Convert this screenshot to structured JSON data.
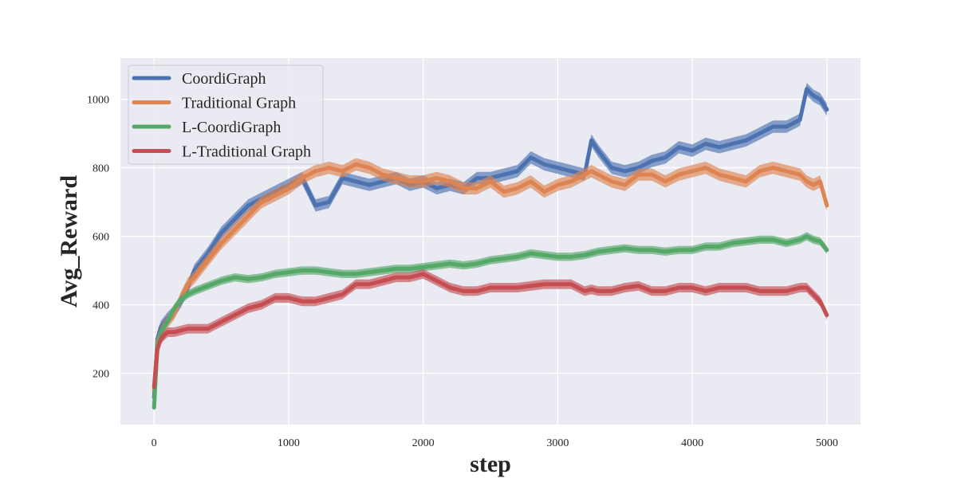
{
  "chart_data": {
    "type": "line",
    "title": "",
    "xlabel": "step",
    "ylabel": "Avg_Reward",
    "xlim": [
      -250,
      5250
    ],
    "ylim": [
      50,
      1120
    ],
    "xticks": [
      0,
      1000,
      2000,
      3000,
      4000,
      5000
    ],
    "yticks": [
      200,
      400,
      600,
      800,
      1000
    ],
    "grid": true,
    "legend_position": "top-left",
    "x": [
      0,
      25,
      50,
      100,
      150,
      200,
      250,
      300,
      400,
      500,
      600,
      700,
      800,
      900,
      1000,
      1100,
      1200,
      1300,
      1400,
      1500,
      1600,
      1700,
      1800,
      1900,
      2000,
      2100,
      2200,
      2300,
      2400,
      2500,
      2600,
      2700,
      2800,
      2900,
      3000,
      3100,
      3200,
      3250,
      3300,
      3400,
      3500,
      3600,
      3700,
      3800,
      3900,
      4000,
      4100,
      4200,
      4300,
      4400,
      4500,
      4600,
      4700,
      4800,
      4850,
      4900,
      4950,
      5000
    ],
    "series": [
      {
        "name": "CoordiGraph",
        "color": "#4c72b0",
        "band": 18,
        "values": [
          130,
          300,
          335,
          360,
          380,
          410,
          450,
          500,
          550,
          610,
          650,
          690,
          710,
          730,
          750,
          770,
          690,
          700,
          770,
          760,
          750,
          760,
          770,
          750,
          760,
          740,
          750,
          740,
          770,
          770,
          780,
          790,
          830,
          810,
          800,
          790,
          780,
          880,
          850,
          800,
          790,
          800,
          820,
          830,
          860,
          850,
          870,
          860,
          870,
          880,
          900,
          920,
          920,
          940,
          1030,
          1010,
          1000,
          970
        ]
      },
      {
        "name": "Traditional Graph",
        "color": "#dd8452",
        "band": 18,
        "values": [
          150,
          290,
          320,
          350,
          375,
          420,
          460,
          480,
          530,
          580,
          620,
          660,
          700,
          720,
          740,
          770,
          790,
          800,
          790,
          810,
          800,
          780,
          770,
          760,
          760,
          770,
          760,
          740,
          740,
          760,
          730,
          740,
          760,
          730,
          750,
          760,
          780,
          790,
          780,
          760,
          750,
          780,
          780,
          760,
          780,
          790,
          800,
          780,
          770,
          760,
          790,
          800,
          790,
          780,
          760,
          750,
          760,
          690
        ]
      },
      {
        "name": "L-CoordiGraph",
        "color": "#55a868",
        "band": 12,
        "values": [
          100,
          280,
          320,
          350,
          390,
          415,
          430,
          440,
          455,
          470,
          480,
          475,
          480,
          490,
          495,
          500,
          500,
          495,
          490,
          490,
          495,
          500,
          505,
          505,
          510,
          515,
          520,
          515,
          520,
          530,
          535,
          540,
          550,
          545,
          540,
          540,
          545,
          550,
          555,
          560,
          565,
          560,
          560,
          555,
          560,
          560,
          570,
          570,
          580,
          585,
          590,
          590,
          580,
          590,
          600,
          590,
          585,
          560
        ]
      },
      {
        "name": "L-Traditional Graph",
        "color": "#c44e52",
        "band": 14,
        "values": [
          160,
          270,
          300,
          320,
          320,
          325,
          330,
          330,
          330,
          350,
          370,
          390,
          400,
          420,
          420,
          410,
          410,
          420,
          430,
          460,
          460,
          470,
          480,
          480,
          490,
          470,
          450,
          440,
          440,
          450,
          450,
          450,
          455,
          460,
          460,
          460,
          440,
          445,
          440,
          440,
          450,
          455,
          440,
          440,
          450,
          450,
          440,
          450,
          450,
          450,
          440,
          440,
          440,
          450,
          450,
          430,
          410,
          370
        ]
      }
    ]
  }
}
